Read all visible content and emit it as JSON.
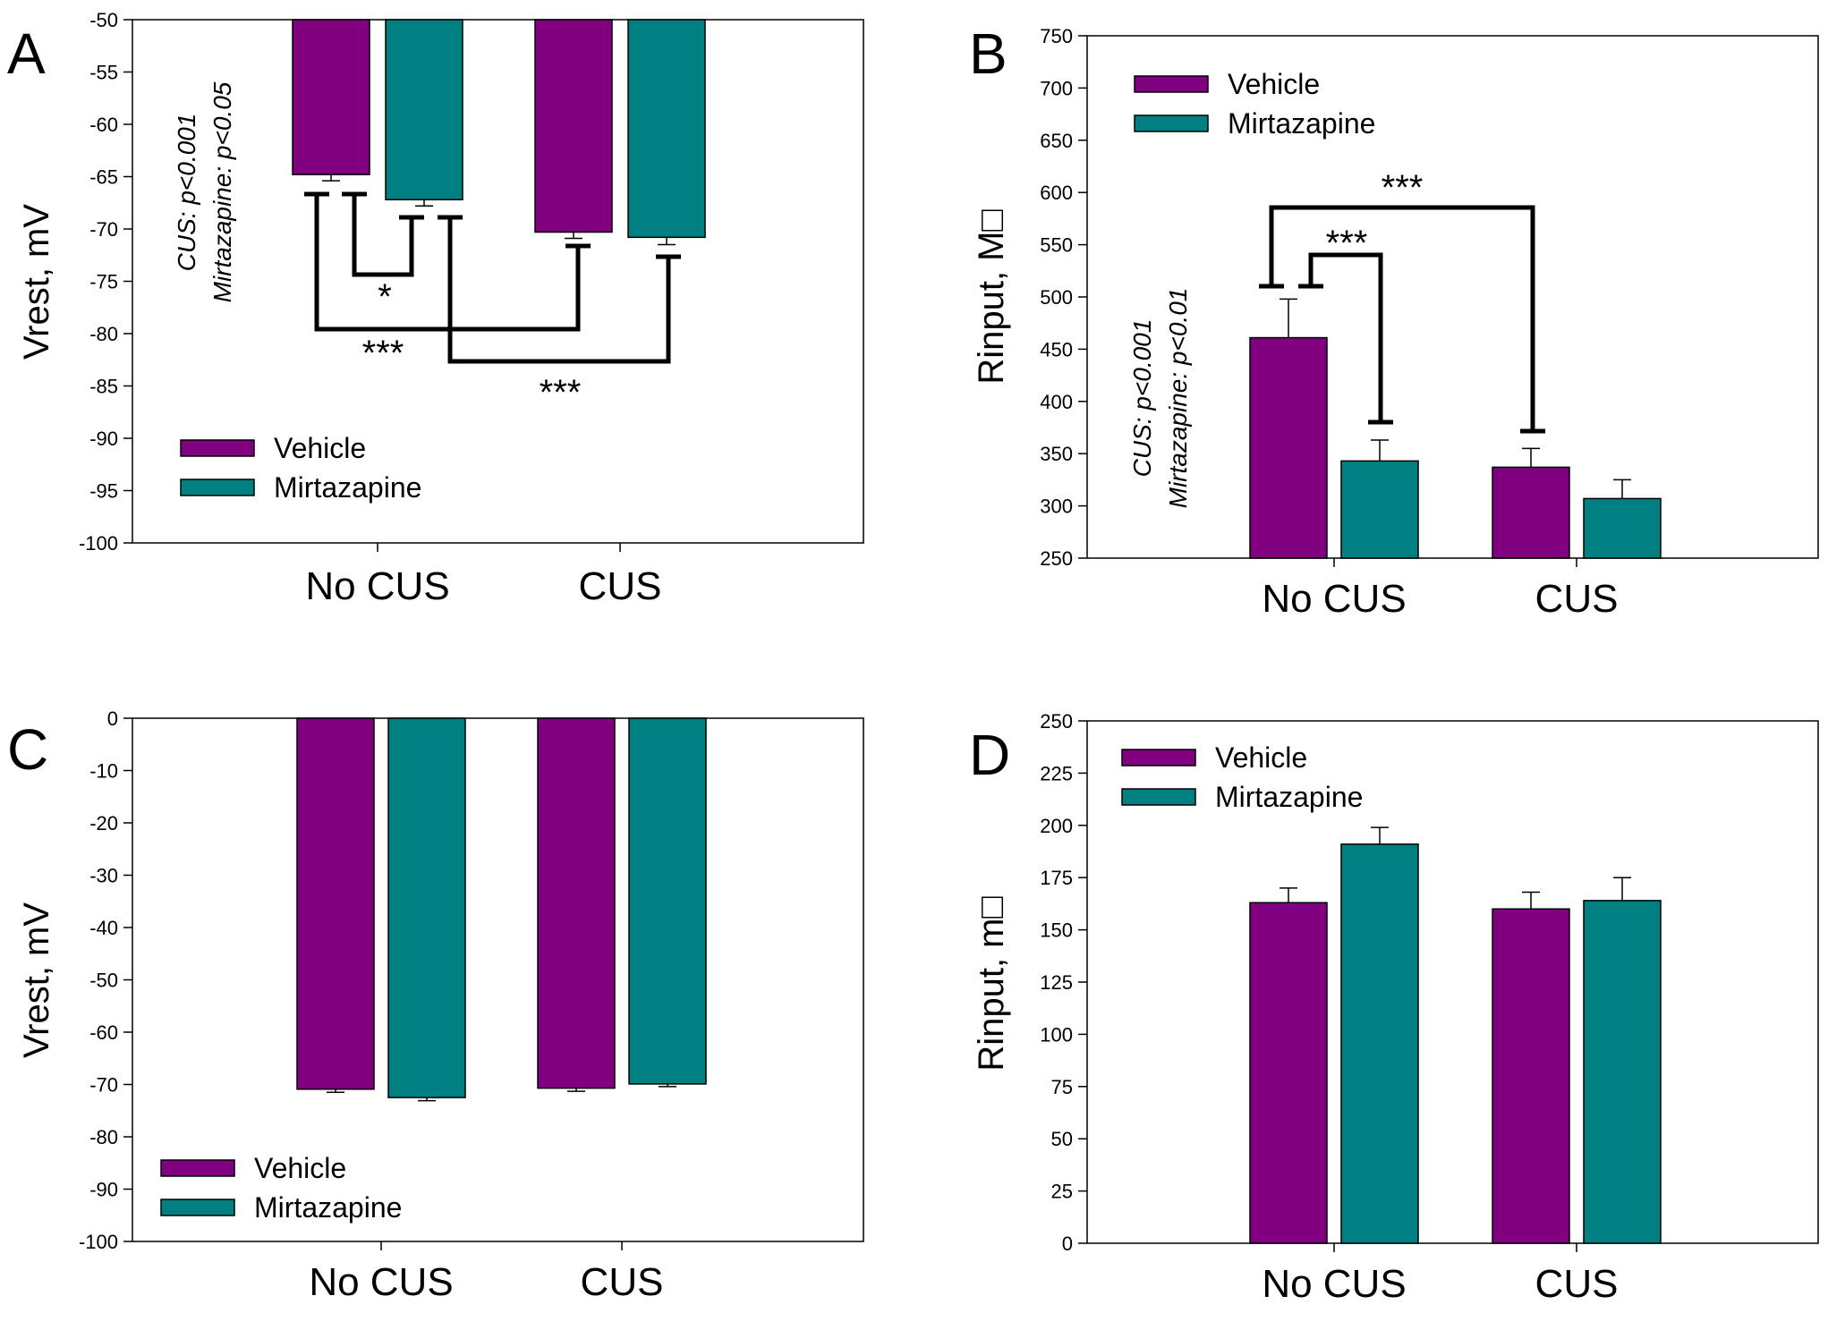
{
  "colors": {
    "vehicle": "#800080",
    "mirtazapine": "#008080",
    "axis": "#000000"
  },
  "chart_data": [
    {
      "panel": "A",
      "type": "bar",
      "categories": [
        "No CUS",
        "CUS"
      ],
      "series": [
        {
          "name": "Vehicle",
          "values": [
            -64.8,
            -70.3
          ],
          "errors": [
            0.6,
            0.6
          ]
        },
        {
          "name": "Mirtazapine",
          "values": [
            -67.2,
            -70.8
          ],
          "errors": [
            0.6,
            0.7
          ]
        }
      ],
      "ylabel": "Vrest, mV",
      "ylim": [
        -100,
        -50
      ],
      "yticks": [
        -50,
        -55,
        -60,
        -65,
        -70,
        -75,
        -80,
        -85,
        -90,
        -95,
        -100
      ],
      "bars_hang_from_top": true,
      "legend": [
        "Vehicle",
        "Mirtazapine"
      ],
      "legend_position": "bottom-left",
      "stats_text": [
        "CUS: p<0.001",
        "Mirtazapine: p<0.05"
      ],
      "significance": [
        {
          "from": [
            0,
            0
          ],
          "to": [
            0,
            1
          ],
          "label": "*"
        },
        {
          "from": [
            0,
            0
          ],
          "to": [
            1,
            0
          ],
          "label": "***"
        },
        {
          "from": [
            0,
            1
          ],
          "to": [
            1,
            1
          ],
          "label": "***"
        }
      ]
    },
    {
      "panel": "B",
      "type": "bar",
      "categories": [
        "No CUS",
        "CUS"
      ],
      "series": [
        {
          "name": "Vehicle",
          "values": [
            461,
            337
          ],
          "errors": [
            37,
            18
          ]
        },
        {
          "name": "Mirtazapine",
          "values": [
            343,
            307
          ],
          "errors": [
            20,
            18
          ]
        }
      ],
      "ylabel": "Rinput, M□",
      "ylim": [
        250,
        750
      ],
      "yticks": [
        250,
        300,
        350,
        400,
        450,
        500,
        550,
        600,
        650,
        700,
        750
      ],
      "legend": [
        "Vehicle",
        "Mirtazapine"
      ],
      "legend_position": "top-left",
      "stats_text": [
        "CUS: p<0.001",
        "Mirtazapine: p<0.01"
      ],
      "significance": [
        {
          "from": [
            0,
            0
          ],
          "to": [
            0,
            1
          ],
          "label": "***"
        },
        {
          "from": [
            0,
            0
          ],
          "to": [
            1,
            0
          ],
          "label": "***"
        }
      ]
    },
    {
      "panel": "C",
      "type": "bar",
      "categories": [
        "No CUS",
        "CUS"
      ],
      "series": [
        {
          "name": "Vehicle",
          "values": [
            -70.9,
            -70.7
          ],
          "errors": [
            0.6,
            0.6
          ]
        },
        {
          "name": "Mirtazapine",
          "values": [
            -72.5,
            -69.9
          ],
          "errors": [
            0.6,
            0.5
          ]
        }
      ],
      "ylabel": "Vrest, mV",
      "ylim": [
        -100,
        0
      ],
      "yticks": [
        0,
        -10,
        -20,
        -30,
        -40,
        -50,
        -60,
        -70,
        -80,
        -90,
        -100
      ],
      "bars_hang_from_top": true,
      "legend": [
        "Vehicle",
        "Mirtazapine"
      ],
      "legend_position": "bottom-left"
    },
    {
      "panel": "D",
      "type": "bar",
      "categories": [
        "No CUS",
        "CUS"
      ],
      "series": [
        {
          "name": "Vehicle",
          "values": [
            163,
            160
          ],
          "errors": [
            7,
            8
          ]
        },
        {
          "name": "Mirtazapine",
          "values": [
            191,
            164
          ],
          "errors": [
            8,
            11
          ]
        }
      ],
      "ylabel": "Rinput, m□",
      "ylim": [
        0,
        250
      ],
      "yticks": [
        0,
        25,
        50,
        75,
        100,
        125,
        150,
        175,
        200,
        225,
        250
      ],
      "legend": [
        "Vehicle",
        "Mirtazapine"
      ],
      "legend_position": "top-left"
    }
  ]
}
